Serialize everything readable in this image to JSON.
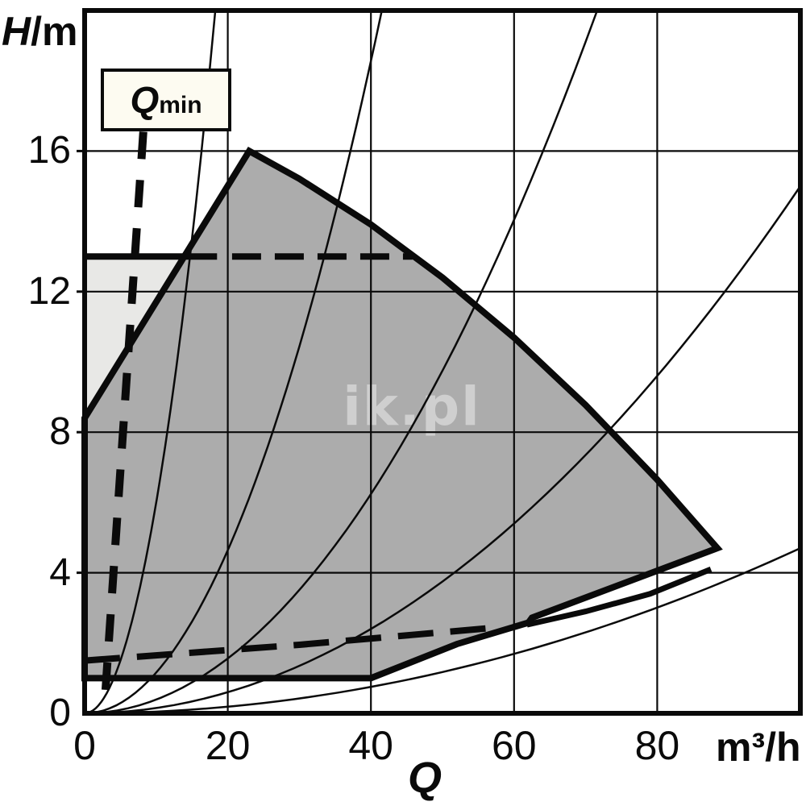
{
  "watermark": "ik.pl",
  "axes": {
    "y": {
      "symbol": "H",
      "unit": "/m",
      "ticks": [
        0,
        4,
        8,
        12,
        16
      ],
      "range": [
        0,
        20
      ]
    },
    "x": {
      "symbol": "Q",
      "unit": "m³/h",
      "ticks": [
        0,
        20,
        40,
        60,
        80
      ],
      "range": [
        0,
        100
      ]
    }
  },
  "qmin_label": {
    "symbol": "Q",
    "sub": "min"
  },
  "colors": {
    "line": "#0a0a0a",
    "envelope_fill": "#acacac",
    "light_region_fill": "#e8e8e6",
    "qmin_box_fill": "#fdfbf1",
    "watermark_fill": "#ffffff"
  },
  "chart_data": {
    "type": "area",
    "title": "",
    "xlabel": "Q",
    "x_unit": "m³/h",
    "ylabel": "H",
    "y_unit": "m",
    "xlim": [
      0,
      100
    ],
    "ylim": [
      0,
      20
    ],
    "grid": {
      "x_lines": [
        20,
        40,
        60,
        80
      ],
      "y_lines": [
        4,
        8,
        12,
        16
      ]
    },
    "operating_envelope": {
      "comment": "pump operating field polygon, Q in m3/h, H in m",
      "points": [
        [
          0,
          1
        ],
        [
          0,
          8.4
        ],
        [
          23,
          16
        ],
        [
          30,
          15.21
        ],
        [
          40,
          13.91
        ],
        [
          50,
          12.4
        ],
        [
          60,
          10.69
        ],
        [
          70,
          8.77
        ],
        [
          80,
          6.65
        ],
        [
          88.4,
          4.7
        ],
        [
          62.5,
          2.72
        ],
        [
          62,
          2.58
        ],
        [
          52,
          1.97
        ],
        [
          40,
          1
        ]
      ]
    },
    "light_region": {
      "points": [
        [
          0,
          8.4
        ],
        [
          0,
          13
        ],
        [
          14.2,
          13
        ]
      ]
    },
    "notch_line": {
      "points": [
        [
          61.8,
          2.52
        ],
        [
          70,
          2.9
        ],
        [
          79,
          3.4
        ],
        [
          87.5,
          4.1
        ]
      ]
    },
    "h13_line": {
      "h": 13,
      "solid_q": [
        0,
        18.5
      ],
      "dashed_q": [
        20.6,
        45.8
      ]
    },
    "lower_dashed_line": {
      "points": [
        [
          0,
          1.5
        ],
        [
          30,
          1.95
        ],
        [
          58,
          2.45
        ]
      ]
    },
    "qmin_line": {
      "from_qh": [
        8.2,
        16.55
      ],
      "to_qh": [
        2.7,
        0
      ]
    },
    "system_curves": {
      "formula": "H = k * Q^2",
      "k_values": [
        0.06,
        0.0116,
        0.0039,
        0.0015,
        0.00047
      ]
    }
  }
}
